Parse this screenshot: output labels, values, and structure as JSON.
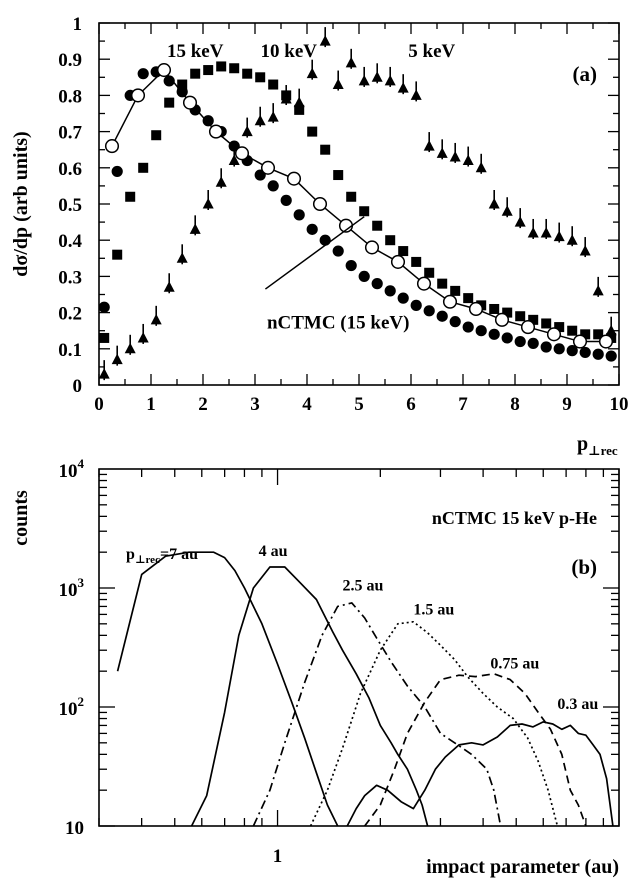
{
  "chart_data": [
    {
      "type": "scatter",
      "panel_label": "(a)",
      "ylabel": "dσ/dp (arb units)",
      "xlabel_main": "p",
      "xlabel_sub": "⊥rec",
      "xlim": [
        0,
        10
      ],
      "ylim": [
        0,
        1
      ],
      "xticks": [
        "0",
        "1",
        "2",
        "3",
        "4",
        "5",
        "6",
        "7",
        "8",
        "9",
        "10"
      ],
      "yticks": [
        "0",
        "0.1",
        "0.2",
        "0.3",
        "0.4",
        "0.5",
        "0.6",
        "0.7",
        "0.8",
        "0.9",
        "1"
      ],
      "series_labels": [
        {
          "text": "15 keV",
          "x": 1.85,
          "y": 0.925
        },
        {
          "text": "10 keV",
          "x": 3.65,
          "y": 0.925
        },
        {
          "text": "5 keV",
          "x": 6.4,
          "y": 0.925
        },
        {
          "text": "nCTMC (15 keV)",
          "x": 4.6,
          "y": 0.175
        }
      ],
      "annotation_line": {
        "from": [
          3.2,
          0.265
        ],
        "to": [
          5.1,
          0.465
        ]
      },
      "series": [
        {
          "marker": "circle-filled",
          "x": [
            0.1,
            0.35,
            0.6,
            0.85,
            1.1,
            1.35,
            1.6,
            1.85,
            2.1,
            2.35,
            2.6,
            2.85,
            3.1,
            3.35,
            3.6,
            3.85,
            4.1,
            4.35,
            4.6,
            4.85,
            5.1,
            5.35,
            5.6,
            5.85,
            6.1,
            6.35,
            6.6,
            6.85,
            7.1,
            7.35,
            7.6,
            7.85,
            8.1,
            8.35,
            8.6,
            8.85,
            9.1,
            9.35,
            9.6,
            9.85
          ],
          "y": [
            0.215,
            0.59,
            0.8,
            0.86,
            0.865,
            0.84,
            0.81,
            0.76,
            0.73,
            0.7,
            0.66,
            0.62,
            0.58,
            0.55,
            0.51,
            0.47,
            0.43,
            0.4,
            0.37,
            0.33,
            0.3,
            0.28,
            0.26,
            0.24,
            0.22,
            0.205,
            0.19,
            0.175,
            0.16,
            0.15,
            0.14,
            0.13,
            0.12,
            0.115,
            0.105,
            0.1,
            0.095,
            0.09,
            0.085,
            0.08
          ]
        },
        {
          "marker": "square-filled",
          "x": [
            0.1,
            0.35,
            0.6,
            0.85,
            1.1,
            1.35,
            1.6,
            1.85,
            2.1,
            2.35,
            2.6,
            2.85,
            3.1,
            3.35,
            3.6,
            3.85,
            4.1,
            4.35,
            4.6,
            4.85,
            5.1,
            5.35,
            5.6,
            5.85,
            6.1,
            6.35,
            6.6,
            6.85,
            7.1,
            7.35,
            7.6,
            7.85,
            8.1,
            8.35,
            8.6,
            8.85,
            9.1,
            9.35,
            9.6,
            9.85
          ],
          "y": [
            0.13,
            0.36,
            0.52,
            0.6,
            0.69,
            0.78,
            0.83,
            0.86,
            0.87,
            0.88,
            0.875,
            0.86,
            0.85,
            0.83,
            0.8,
            0.76,
            0.7,
            0.65,
            0.58,
            0.52,
            0.48,
            0.44,
            0.4,
            0.37,
            0.34,
            0.31,
            0.28,
            0.26,
            0.24,
            0.22,
            0.21,
            0.2,
            0.19,
            0.18,
            0.17,
            0.16,
            0.15,
            0.14,
            0.14,
            0.13
          ]
        },
        {
          "marker": "triangle-filled",
          "error_bars": true,
          "x": [
            0.1,
            0.35,
            0.6,
            0.85,
            1.1,
            1.35,
            1.6,
            1.85,
            2.1,
            2.35,
            2.6,
            2.85,
            3.1,
            3.35,
            3.6,
            3.85,
            4.1,
            4.35,
            4.6,
            4.85,
            5.1,
            5.35,
            5.6,
            5.85,
            6.1,
            6.35,
            6.6,
            6.85,
            7.1,
            7.35,
            7.6,
            7.85,
            8.1,
            8.35,
            8.6,
            8.85,
            9.1,
            9.35,
            9.6,
            9.85
          ],
          "y": [
            0.03,
            0.07,
            0.1,
            0.13,
            0.18,
            0.27,
            0.35,
            0.43,
            0.5,
            0.56,
            0.62,
            0.7,
            0.73,
            0.74,
            0.79,
            0.78,
            0.86,
            0.95,
            0.83,
            0.89,
            0.84,
            0.85,
            0.84,
            0.82,
            0.8,
            0.66,
            0.64,
            0.63,
            0.62,
            0.6,
            0.5,
            0.48,
            0.45,
            0.42,
            0.42,
            0.41,
            0.4,
            0.37,
            0.26,
            0.15
          ]
        },
        {
          "marker": "circle-open-line",
          "x": [
            0.25,
            0.75,
            1.25,
            1.75,
            2.25,
            2.75,
            3.25,
            3.75,
            4.25,
            4.75,
            5.25,
            5.75,
            6.25,
            6.75,
            7.25,
            7.75,
            8.25,
            8.75,
            9.25,
            9.75
          ],
          "y": [
            0.66,
            0.8,
            0.87,
            0.78,
            0.7,
            0.64,
            0.6,
            0.57,
            0.5,
            0.44,
            0.38,
            0.34,
            0.28,
            0.23,
            0.21,
            0.18,
            0.16,
            0.14,
            0.12,
            0.12
          ]
        }
      ]
    },
    {
      "type": "line",
      "panel_label": "(b)",
      "title": "nCTMC 15 keV p-He",
      "ylabel": "counts",
      "xlabel": "impact parameter (au)",
      "yscale": "log",
      "xscale": "log",
      "xlim": [
        0.3,
        10
      ],
      "ylim": [
        10,
        10000
      ],
      "xticks": [
        {
          "value": 1,
          "label": "1"
        }
      ],
      "yticks": [
        {
          "value": 10,
          "base": "10",
          "exp": ""
        },
        {
          "value": 100,
          "base": "10",
          "exp": "2"
        },
        {
          "value": 1000,
          "base": "10",
          "exp": "3"
        },
        {
          "value": 10000,
          "base": "10",
          "exp": "4"
        }
      ],
      "curve_labels": [
        {
          "main": "p",
          "sub": "⊥rec",
          "tail": "=7 au",
          "x": 0.36,
          "y": 1750
        },
        {
          "main": "4 au",
          "x": 0.88,
          "y": 1850
        },
        {
          "main": "2.5 au",
          "x": 1.55,
          "y": 950
        },
        {
          "main": "1.5 au",
          "x": 2.5,
          "y": 600
        },
        {
          "main": "0.75 au",
          "x": 4.2,
          "y": 210
        },
        {
          "main": "0.3 au",
          "x": 6.6,
          "y": 96
        }
      ],
      "series": [
        {
          "name": "7 au",
          "dash": "solid",
          "x": [
            0.34,
            0.4,
            0.47,
            0.55,
            0.65,
            0.7,
            0.75,
            0.8,
            0.9,
            1.0,
            1.1,
            1.2,
            1.3,
            1.4,
            1.5
          ],
          "y": [
            200,
            1300,
            1850,
            2000,
            2000,
            1800,
            1400,
            1000,
            500,
            230,
            110,
            55,
            28,
            15,
            10
          ]
        },
        {
          "name": "4 au",
          "dash": "solid",
          "x": [
            0.56,
            0.62,
            0.7,
            0.77,
            0.85,
            0.95,
            1.05,
            1.15,
            1.3,
            1.45,
            1.55,
            1.7,
            1.85,
            2.0,
            2.15,
            2.25,
            2.4,
            2.55,
            2.65,
            2.75
          ],
          "y": [
            10,
            18,
            90,
            400,
            1000,
            1500,
            1500,
            1150,
            800,
            430,
            300,
            190,
            120,
            70,
            50,
            40,
            30,
            20,
            15,
            10
          ]
        },
        {
          "name": "2.5 au",
          "dash": "dashdot",
          "x": [
            0.85,
            0.95,
            1.05,
            1.2,
            1.35,
            1.5,
            1.65,
            1.8,
            1.95,
            2.15,
            2.4,
            2.7,
            3.0,
            3.3,
            3.7,
            4.1,
            4.3,
            4.5
          ],
          "y": [
            10,
            20,
            50,
            160,
            400,
            700,
            750,
            560,
            380,
            240,
            150,
            100,
            60,
            50,
            40,
            30,
            20,
            10
          ]
        },
        {
          "name": "1.5 au",
          "dash": "dotted",
          "x": [
            1.25,
            1.4,
            1.55,
            1.75,
            2.0,
            2.25,
            2.5,
            2.75,
            3.0,
            3.3,
            3.6,
            4.0,
            4.4,
            4.9,
            5.4,
            5.8,
            6.2,
            6.6
          ],
          "y": [
            10,
            20,
            45,
            130,
            300,
            500,
            520,
            420,
            330,
            250,
            180,
            130,
            100,
            80,
            55,
            35,
            20,
            10
          ]
        },
        {
          "name": "0.75 au",
          "dash": "dashed",
          "x": [
            1.8,
            2.0,
            2.2,
            2.4,
            2.7,
            3.0,
            3.4,
            3.8,
            4.3,
            4.8,
            5.3,
            5.8,
            6.3,
            6.8,
            7.2,
            7.6,
            8.0
          ],
          "y": [
            10,
            15,
            30,
            60,
            110,
            170,
            185,
            180,
            190,
            170,
            130,
            90,
            65,
            40,
            20,
            15,
            10
          ]
        },
        {
          "name": "0.3 au",
          "dash": "solid",
          "x": [
            1.6,
            1.7,
            1.8,
            1.95,
            2.1,
            2.3,
            2.5,
            2.7,
            2.9,
            3.1,
            3.4,
            3.7,
            4.0,
            4.4,
            4.8,
            5.2,
            5.6,
            6.0,
            6.4,
            6.8,
            7.2,
            7.6,
            8.0,
            8.4,
            8.8,
            9.2,
            9.6
          ],
          "y": [
            10,
            14,
            18,
            22,
            20,
            16,
            14,
            20,
            30,
            38,
            48,
            50,
            48,
            56,
            70,
            72,
            68,
            75,
            72,
            65,
            70,
            60,
            58,
            48,
            40,
            25,
            10
          ]
        }
      ]
    }
  ]
}
